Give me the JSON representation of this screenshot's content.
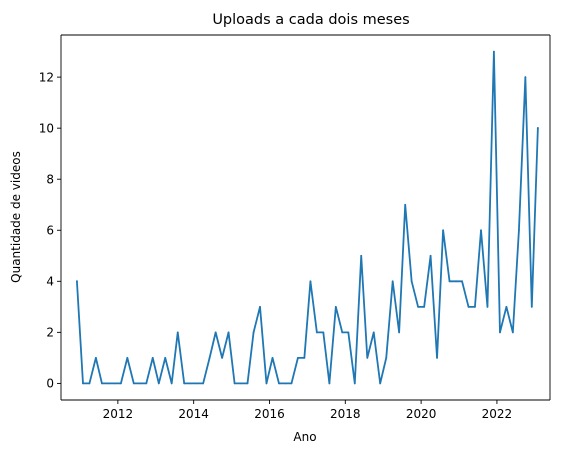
{
  "chart_data": {
    "type": "line",
    "title": "Uploads a cada dois meses",
    "xlabel": "Ano",
    "ylabel": "Quantidade de videos",
    "xlim": [
      2010.5,
      2023.4
    ],
    "ylim": [
      -0.65,
      13.65
    ],
    "x_ticks": [
      2012,
      2014,
      2016,
      2018,
      2020,
      2022
    ],
    "y_ticks": [
      0,
      2,
      4,
      6,
      8,
      10,
      12
    ],
    "grid": false,
    "color": "#1f77b4",
    "series": [
      {
        "x": [
          2010.92,
          2011.08,
          2011.25,
          2011.42,
          2011.58,
          2011.75,
          2011.92,
          2012.08,
          2012.25,
          2012.42,
          2012.58,
          2012.75,
          2012.92,
          2013.08,
          2013.25,
          2013.42,
          2013.58,
          2013.75,
          2013.92,
          2014.08,
          2014.25,
          2014.42,
          2014.58,
          2014.75,
          2014.92,
          2015.08,
          2015.25,
          2015.42,
          2015.58,
          2015.75,
          2015.92,
          2016.08,
          2016.25,
          2016.42,
          2016.58,
          2016.75,
          2016.92,
          2017.08,
          2017.25,
          2017.42,
          2017.58,
          2017.75,
          2017.92,
          2018.08,
          2018.25,
          2018.42,
          2018.58,
          2018.75,
          2018.92,
          2019.08,
          2019.25,
          2019.42,
          2019.58,
          2019.75,
          2019.92,
          2020.08,
          2020.25,
          2020.42,
          2020.58,
          2020.75,
          2020.92,
          2021.08,
          2021.25,
          2021.42,
          2021.58,
          2021.75,
          2021.92,
          2022.08,
          2022.25,
          2022.42,
          2022.58,
          2022.75,
          2022.92,
          2023.08
        ],
        "y": [
          4,
          0,
          0,
          1,
          0,
          0,
          0,
          0,
          1,
          0,
          0,
          0,
          1,
          0,
          1,
          0,
          2,
          0,
          0,
          0,
          0,
          1,
          2,
          1,
          2,
          0,
          0,
          0,
          2,
          3,
          0,
          1,
          0,
          0,
          0,
          1,
          1,
          4,
          2,
          2,
          0,
          3,
          2,
          2,
          0,
          5,
          1,
          2,
          0,
          1,
          4,
          2,
          7,
          4,
          3,
          3,
          5,
          1,
          6,
          4,
          4,
          4,
          3,
          3,
          6,
          3,
          13,
          2,
          3,
          2,
          6,
          12,
          3,
          10
        ]
      }
    ]
  }
}
